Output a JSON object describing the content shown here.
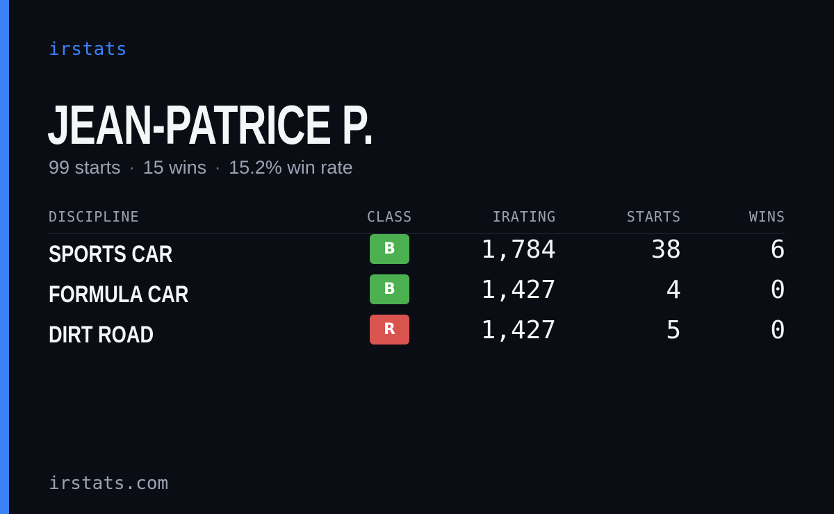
{
  "brand": "irstats",
  "driver": {
    "name": "JEAN-PATRICE P."
  },
  "summary": {
    "starts": "99 starts",
    "wins": "15 wins",
    "win_rate": "15.2% win rate",
    "separator": "·"
  },
  "table": {
    "headers": {
      "discipline": "DISCIPLINE",
      "class": "CLASS",
      "irating": "IRATING",
      "starts": "STARTS",
      "wins": "WINS"
    },
    "rows": [
      {
        "discipline": "SPORTS CAR",
        "class": "B",
        "class_color": "#4caf50",
        "irating": "1,784",
        "starts": "38",
        "wins": "6"
      },
      {
        "discipline": "FORMULA CAR",
        "class": "B",
        "class_color": "#4caf50",
        "irating": "1,427",
        "starts": "4",
        "wins": "0"
      },
      {
        "discipline": "DIRT ROAD",
        "class": "R",
        "class_color": "#d9534f",
        "irating": "1,427",
        "starts": "5",
        "wins": "0"
      }
    ]
  },
  "footer": {
    "site": "irstats.com"
  },
  "colors": {
    "accent": "#3b82f6",
    "background": "#0a0d14"
  }
}
